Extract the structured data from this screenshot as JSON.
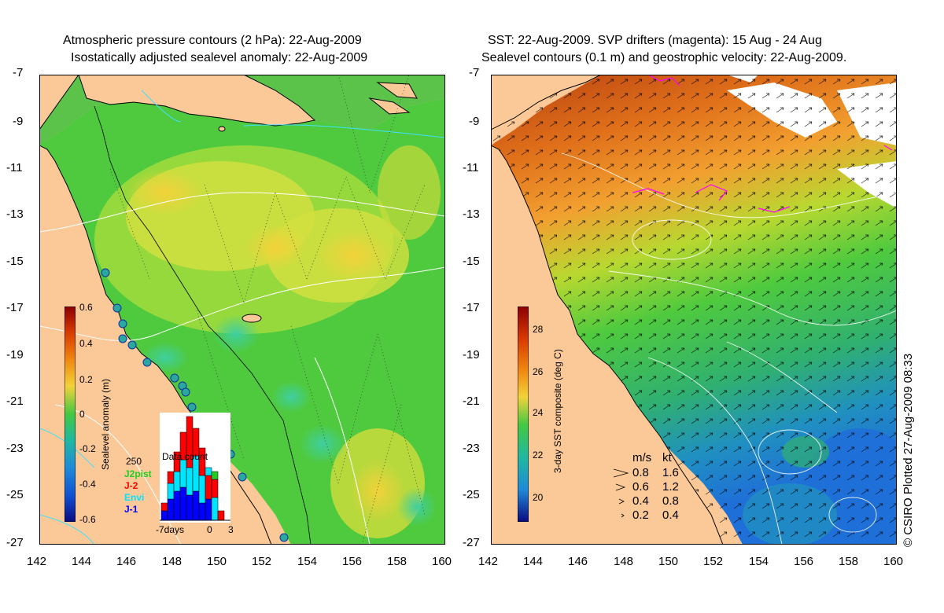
{
  "left_panel": {
    "title_line1": "Atmospheric pressure contours (2 hPa): 22-Aug-2009",
    "title_line2": "Isostatically adjusted sealevel anomaly: 22-Aug-2009",
    "colorbar_label": "Sealevel anomaly (m)",
    "colorbar_ticks": [
      "0.6",
      "0.4",
      "0.2",
      "0",
      "-0.2",
      "-0.4",
      "-0.6"
    ],
    "data_count": {
      "title": "Data count",
      "max_label": "250",
      "x_tick_start": "-7days",
      "x_tick_zero": "0",
      "x_tick_end": "3",
      "legend": [
        {
          "name": "J2pist",
          "color": "#22cc22"
        },
        {
          "name": "J-2",
          "color": "#ff0000"
        },
        {
          "name": "Envi",
          "color": "#00e5ff"
        },
        {
          "name": "J-1",
          "color": "#0000ff"
        }
      ]
    }
  },
  "right_panel": {
    "title_line1": "SST: 22-Aug-2009. SVP drifters (magenta): 15 Aug - 24 Aug",
    "title_line2": "Sealevel contours (0.1 m) and geostrophic velocity: 22-Aug-2009.",
    "colorbar_label": "3-day SST composite (deg C)",
    "colorbar_ticks": [
      "28",
      "26",
      "24",
      "22",
      "20"
    ],
    "velocity_key": {
      "unit_ms": "m/s",
      "unit_kt": "kt",
      "rows": [
        {
          "ms": "0.8",
          "kt": "1.6"
        },
        {
          "ms": "0.6",
          "kt": "1.2"
        },
        {
          "ms": "0.4",
          "kt": "0.8"
        },
        {
          "ms": "0.2",
          "kt": "0.4"
        }
      ]
    }
  },
  "axes": {
    "lat_ticks": [
      "-7",
      "-9",
      "-11",
      "-13",
      "-15",
      "-17",
      "-19",
      "-21",
      "-23",
      "-25",
      "-27"
    ],
    "lon_ticks": [
      "142",
      "144",
      "146",
      "148",
      "150",
      "152",
      "154",
      "156",
      "158",
      "160"
    ]
  },
  "credit": "© CSIRO Plotted 27-Aug-2009 08:33",
  "colors": {
    "land": "#fbc998",
    "sla_zero": "#44c842",
    "sla_high": "#f0d040",
    "sst_warm": "#e0701a",
    "sst_cool": "#1f6fd8"
  }
}
